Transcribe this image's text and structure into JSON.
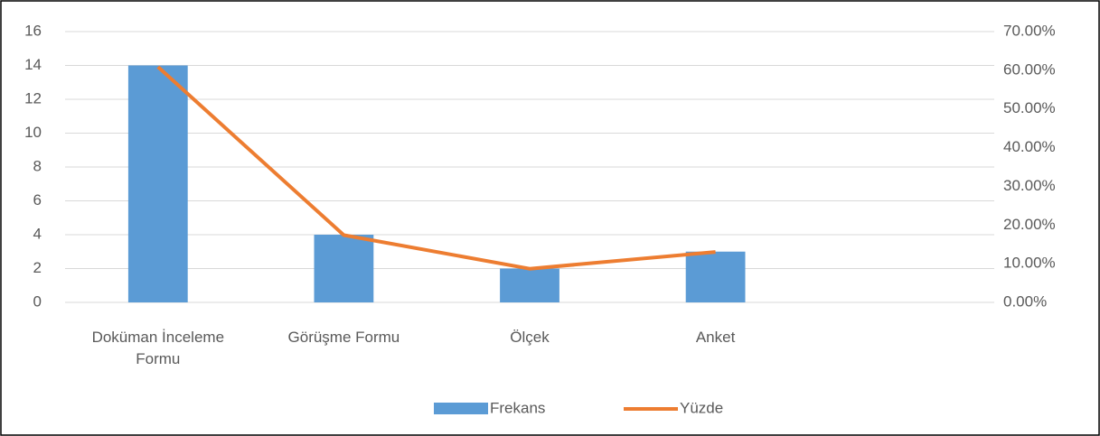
{
  "chart_data": {
    "type": "bar",
    "categories": [
      "Doküman İnceleme Formu",
      "Görüşme Formu",
      "Ölçek",
      "Anket",
      null
    ],
    "series": [
      {
        "name": "Frekans",
        "color": "#5b9bd5",
        "values": [
          14,
          4,
          2,
          3,
          null
        ]
      },
      {
        "name": "Yüzde",
        "color": "#ed7d31",
        "type": "line",
        "axis": "y2",
        "values": [
          60.87,
          17.39,
          8.7,
          13.04,
          null
        ]
      }
    ],
    "ylim": [
      0,
      16
    ],
    "yticks": [
      0,
      2,
      4,
      6,
      8,
      10,
      12,
      14,
      16
    ],
    "y2lim": [
      0,
      70
    ],
    "y2ticks": [
      {
        "value": 0,
        "label": "0.00%"
      },
      {
        "value": 10,
        "label": "10.00%"
      },
      {
        "value": 20,
        "label": "20.00%"
      },
      {
        "value": 30,
        "label": "30.00%"
      },
      {
        "value": 40,
        "label": "40.00%"
      },
      {
        "value": 50,
        "label": "50.00%"
      },
      {
        "value": 60,
        "label": "60.00%"
      },
      {
        "value": 70,
        "label": "70.00%"
      }
    ],
    "grid": true,
    "legend": "bottom"
  }
}
